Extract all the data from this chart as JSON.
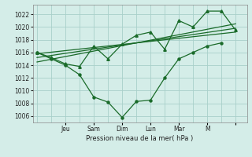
{
  "xlabel": "Pression niveau de la mer( hPa )",
  "bg_color": "#d4ede8",
  "grid_color": "#a8d0ca",
  "line_color": "#1a6b2a",
  "ylim": [
    1005,
    1023.5
  ],
  "yticks": [
    1006,
    1008,
    1010,
    1012,
    1014,
    1016,
    1018,
    1020,
    1022
  ],
  "day_positions": [
    2,
    4,
    6,
    8,
    10,
    12,
    14
  ],
  "day_labels": [
    "Jeu",
    "Sam",
    "Dim",
    "Lun",
    "Mar",
    "M",
    ""
  ],
  "xlim": [
    -0.3,
    14.8
  ],
  "lower_x": [
    0,
    1,
    2,
    3,
    4,
    5,
    6,
    7,
    8,
    9,
    10,
    11,
    12,
    13
  ],
  "lower_y": [
    1016.0,
    1015.0,
    1014.0,
    1012.5,
    1009.0,
    1008.2,
    1005.8,
    1008.3,
    1008.5,
    1012.0,
    1015.0,
    1016.0,
    1017.0,
    1017.5
  ],
  "upper_x": [
    0,
    1,
    2,
    3,
    4,
    5,
    6,
    7,
    8,
    9,
    10,
    11,
    12,
    13,
    14
  ],
  "upper_y": [
    1016.0,
    1015.2,
    1014.2,
    1013.8,
    1017.0,
    1015.0,
    1017.3,
    1018.7,
    1019.2,
    1016.5,
    1021.0,
    1020.0,
    1022.5,
    1022.5,
    1019.5
  ],
  "trend1_x": [
    0,
    14
  ],
  "trend1_y": [
    1015.8,
    1019.2
  ],
  "trend2_x": [
    0,
    14
  ],
  "trend2_y": [
    1015.2,
    1019.8
  ],
  "trend3_x": [
    0,
    14
  ],
  "trend3_y": [
    1014.5,
    1020.5
  ]
}
